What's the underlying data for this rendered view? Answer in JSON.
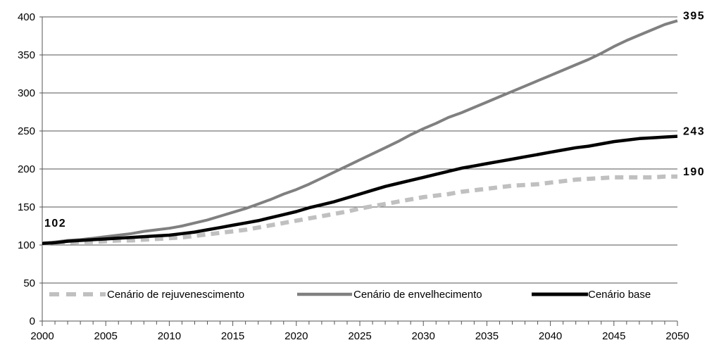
{
  "chart_data": {
    "type": "line",
    "title": "",
    "xlabel": "",
    "ylabel": "",
    "xlim": [
      2000,
      2050
    ],
    "ylim": [
      0,
      400
    ],
    "grid": "horizontal",
    "legend_placement": "bottom-inside",
    "x_ticks": [
      2000,
      2005,
      2010,
      2015,
      2020,
      2025,
      2030,
      2035,
      2040,
      2045,
      2050
    ],
    "y_ticks": [
      0,
      50,
      100,
      150,
      200,
      250,
      300,
      350,
      400
    ],
    "x_tick_labels": [
      "2000",
      "2005",
      "2010",
      "2015",
      "2020",
      "2025",
      "2030",
      "2035",
      "2040",
      "2045",
      "2050"
    ],
    "y_tick_labels": [
      "0",
      "50",
      "100",
      "150",
      "200",
      "250",
      "300",
      "350",
      "400"
    ],
    "x": [
      2000,
      2001,
      2002,
      2003,
      2004,
      2005,
      2006,
      2007,
      2008,
      2009,
      2010,
      2011,
      2012,
      2013,
      2014,
      2015,
      2016,
      2017,
      2018,
      2019,
      2020,
      2021,
      2022,
      2023,
      2024,
      2025,
      2026,
      2027,
      2028,
      2029,
      2030,
      2031,
      2032,
      2033,
      2034,
      2035,
      2036,
      2037,
      2038,
      2039,
      2040,
      2041,
      2042,
      2043,
      2044,
      2045,
      2046,
      2047,
      2048,
      2049,
      2050
    ],
    "series": [
      {
        "name": "Cenário de rejuvenescimento",
        "color": "#c0c0c0",
        "style": "dashed",
        "values": [
          102,
          103,
          103,
          104,
          104,
          105,
          106,
          106,
          107,
          108,
          109,
          110,
          112,
          114,
          116,
          118,
          120,
          123,
          126,
          129,
          132,
          135,
          138,
          141,
          144,
          148,
          151,
          154,
          157,
          160,
          163,
          165,
          167,
          170,
          172,
          174,
          176,
          178,
          179,
          180,
          182,
          184,
          186,
          187,
          188,
          189,
          189,
          189,
          189,
          190,
          190
        ]
      },
      {
        "name": "Cenário de envelhecimento",
        "color": "#808080",
        "style": "solid",
        "values": [
          102,
          104,
          106,
          107,
          109,
          111,
          113,
          115,
          118,
          120,
          122,
          125,
          129,
          133,
          138,
          143,
          148,
          154,
          160,
          167,
          173,
          180,
          188,
          196,
          204,
          212,
          220,
          228,
          236,
          245,
          253,
          260,
          268,
          274,
          281,
          288,
          295,
          302,
          309,
          316,
          323,
          330,
          337,
          344,
          352,
          361,
          369,
          376,
          383,
          390,
          395
        ]
      },
      {
        "name": "Cenário base",
        "color": "#000000",
        "style": "solid",
        "values": [
          102,
          103,
          105,
          106,
          107,
          108,
          109,
          110,
          111,
          112,
          113,
          115,
          117,
          120,
          123,
          126,
          129,
          132,
          136,
          140,
          144,
          149,
          153,
          157,
          162,
          167,
          172,
          177,
          181,
          185,
          189,
          193,
          197,
          201,
          204,
          207,
          210,
          213,
          216,
          219,
          222,
          225,
          228,
          230,
          233,
          236,
          238,
          240,
          241,
          242,
          243
        ]
      }
    ],
    "annotations": [
      {
        "text": "102",
        "attach": "start",
        "series": 2
      },
      {
        "text": "395",
        "attach": "end",
        "series": 1
      },
      {
        "text": "243",
        "attach": "end",
        "series": 2
      },
      {
        "text": "190",
        "attach": "end",
        "series": 0
      }
    ]
  }
}
